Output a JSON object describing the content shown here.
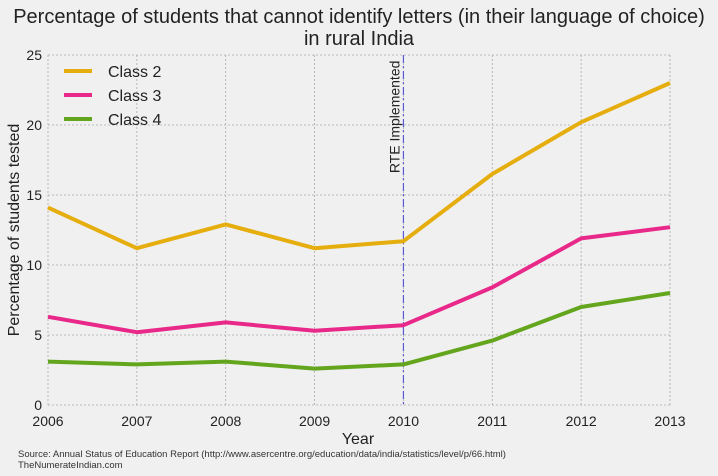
{
  "chart_data": {
    "type": "line",
    "title_line1": "Percentage of students that cannot identify letters (in their language of choice)",
    "title_line2": "in rural India",
    "xlabel": "Year",
    "ylabel": "Percentage of students tested",
    "x": [
      2006,
      2007,
      2008,
      2009,
      2010,
      2011,
      2012,
      2013
    ],
    "xlim": [
      2006,
      2013
    ],
    "ylim": [
      0,
      25
    ],
    "xticks": [
      "2006",
      "2007",
      "2008",
      "2009",
      "2010",
      "2011",
      "2012",
      "2013"
    ],
    "yticks": [
      "0",
      "5",
      "10",
      "15",
      "20",
      "25"
    ],
    "grid": true,
    "legend_position": "top-left",
    "series": [
      {
        "name": "Class 2",
        "color": "#e5ae0e",
        "values": [
          14.1,
          11.2,
          12.9,
          11.2,
          11.7,
          16.5,
          20.2,
          23.0
        ]
      },
      {
        "name": "Class 3",
        "color": "#e8298a",
        "values": [
          6.3,
          5.2,
          5.9,
          5.3,
          5.7,
          8.4,
          11.9,
          12.7
        ]
      },
      {
        "name": "Class 4",
        "color": "#64a51e",
        "values": [
          3.1,
          2.9,
          3.1,
          2.6,
          2.9,
          4.6,
          7.0,
          8.0
        ]
      }
    ],
    "annotation": {
      "x": 2010,
      "label": "RTE Implemented",
      "color": "#5a5ad6"
    }
  },
  "footer": {
    "source": "Source: Annual Status of Education Report (http://www.asercentre.org/education/data/india/statistics/level/p/66.html)",
    "credit": "TheNumerateIndian.com"
  }
}
